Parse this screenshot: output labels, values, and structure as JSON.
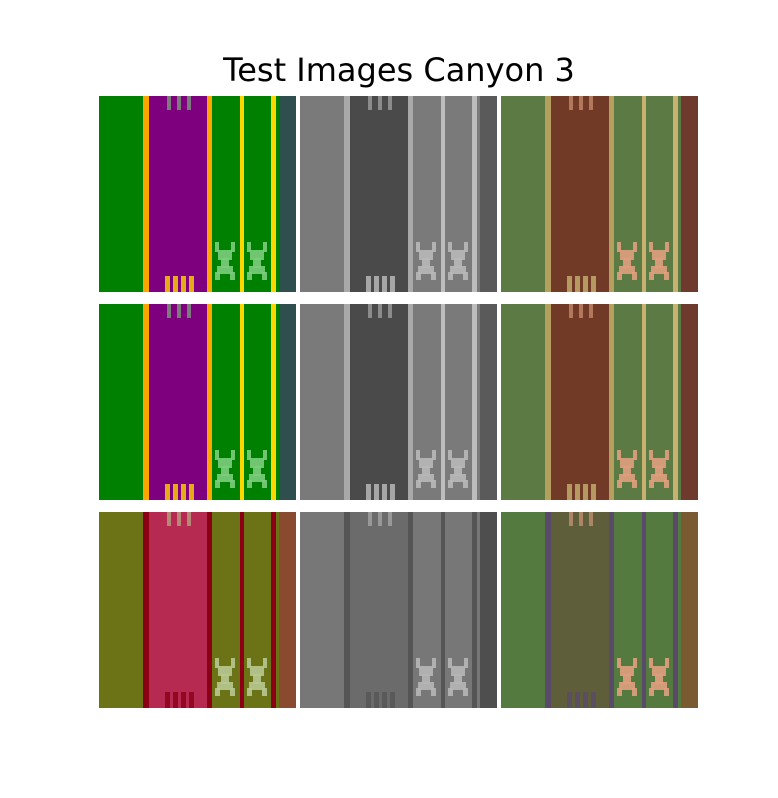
{
  "title": "Test Images Canyon 3",
  "grid": {
    "rows": 3,
    "cols": 3,
    "tiles": [
      {
        "id": "r1c1",
        "palette": {
          "bg": "#008000",
          "main": "#7f007f",
          "edge": "#ffa500",
          "edge2": "#ffd700",
          "dark": "#2f4f4f",
          "sprite": "#7ccc7c"
        }
      },
      {
        "id": "r1c2",
        "palette": {
          "bg": "#7a7a7a",
          "main": "#4a4a4a",
          "edge": "#a9a9a9",
          "edge2": "#bdbdbd",
          "dark": "#5a5a5a",
          "sprite": "#b8b8b8"
        }
      },
      {
        "id": "r1c3",
        "palette": {
          "bg": "#5c7a44",
          "main": "#703a26",
          "edge": "#b6a060",
          "edge2": "#c8b070",
          "dark": "#6e3a2e",
          "sprite": "#e0a080"
        }
      },
      {
        "id": "r2c1",
        "palette": {
          "bg": "#008000",
          "main": "#7f007f",
          "edge": "#ffa500",
          "edge2": "#ffd700",
          "dark": "#2f4f4f",
          "sprite": "#7ccc7c"
        }
      },
      {
        "id": "r2c2",
        "palette": {
          "bg": "#7a7a7a",
          "main": "#4a4a4a",
          "edge": "#a9a9a9",
          "edge2": "#bdbdbd",
          "dark": "#5a5a5a",
          "sprite": "#b8b8b8"
        }
      },
      {
        "id": "r2c3",
        "palette": {
          "bg": "#5c7a44",
          "main": "#703a26",
          "edge": "#b6a060",
          "edge2": "#c8b070",
          "dark": "#6e3a2e",
          "sprite": "#e0a080"
        }
      },
      {
        "id": "r3c1",
        "palette": {
          "bg": "#6b7316",
          "main": "#b62a52",
          "edge": "#8b0014",
          "edge2": "#8b0014",
          "dark": "#8a4a30",
          "sprite": "#b8c890"
        }
      },
      {
        "id": "r3c2",
        "palette": {
          "bg": "#777777",
          "main": "#6b6b6b",
          "edge": "#555555",
          "edge2": "#555555",
          "dark": "#4e4e4e",
          "sprite": "#b6b6b6"
        }
      },
      {
        "id": "r3c3",
        "palette": {
          "bg": "#557a40",
          "main": "#5e5e3a",
          "edge": "#5a4a6a",
          "edge2": "#5a4a6a",
          "dark": "#7a5a30",
          "sprite": "#e0a080"
        }
      }
    ]
  }
}
